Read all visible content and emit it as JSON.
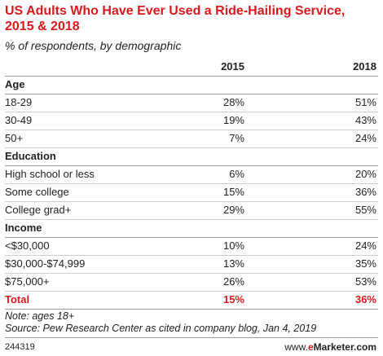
{
  "title": "US Adults Who Have Ever Used a Ride-Hailing Service, 2015 & 2018",
  "subtitle": "% of respondents, by demographic",
  "table": {
    "columns": [
      "2015",
      "2018"
    ],
    "sections": [
      {
        "label": "Age",
        "rows": [
          {
            "label": "18-29",
            "values": [
              "28%",
              "51%"
            ]
          },
          {
            "label": "30-49",
            "values": [
              "19%",
              "43%"
            ]
          },
          {
            "label": "50+",
            "values": [
              "7%",
              "24%"
            ]
          }
        ]
      },
      {
        "label": "Education",
        "rows": [
          {
            "label": "High school or less",
            "values": [
              "6%",
              "20%"
            ]
          },
          {
            "label": "Some college",
            "values": [
              "15%",
              "36%"
            ]
          },
          {
            "label": "College grad+",
            "values": [
              "29%",
              "55%"
            ]
          }
        ]
      },
      {
        "label": "Income",
        "rows": [
          {
            "label": "<$30,000",
            "values": [
              "10%",
              "24%"
            ]
          },
          {
            "label": "$30,000-$74,999",
            "values": [
              "13%",
              "35%"
            ]
          },
          {
            "label": "$75,000+",
            "values": [
              "26%",
              "53%"
            ]
          }
        ]
      }
    ],
    "total": {
      "label": "Total",
      "values": [
        "15%",
        "36%"
      ]
    }
  },
  "notes": [
    "Note: ages 18+",
    "Source: Pew Research Center as cited in company blog, Jan 4, 2019"
  ],
  "footer": {
    "id": "244319",
    "brand_prefix": "www.",
    "brand_accent": "e",
    "brand_rest": "Marketer.com"
  }
}
